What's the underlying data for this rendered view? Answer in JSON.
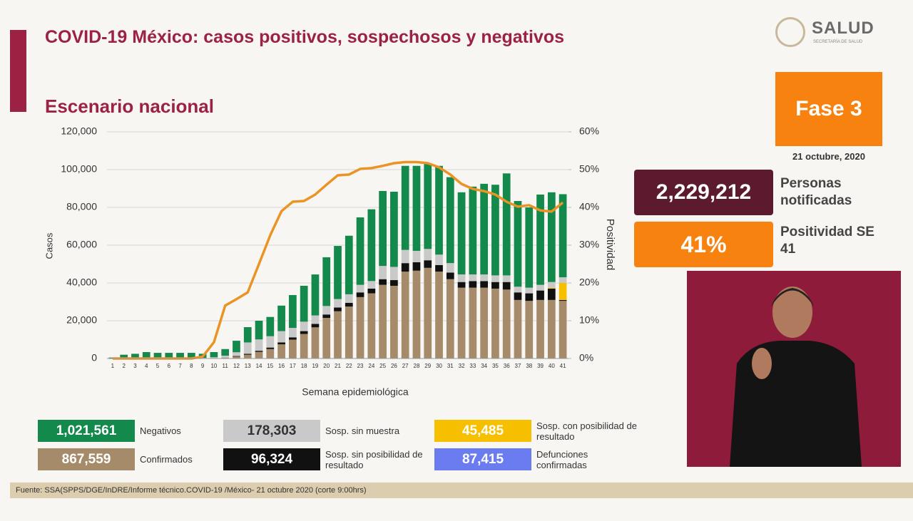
{
  "header": {
    "title": "COVID-19 México: casos positivos, sospechosos y negativos",
    "subtitle": "Escenario nacional",
    "logo": "SALUD",
    "logo_sub": "SECRETARÍA DE SALUD"
  },
  "side": {
    "phase": "Fase 3",
    "date": "21 octubre, 2020",
    "notified": "2,229,212",
    "notified_label": "Personas notificadas",
    "positivity": "41%",
    "positivity_label": "Positividad SE 41"
  },
  "chart_data": {
    "type": "bar",
    "stacked": true,
    "xlabel": "Semana epidemiológica",
    "ylabel": "Casos",
    "y2label": "Positividad",
    "categories": [
      "1",
      "2",
      "3",
      "4",
      "5",
      "6",
      "7",
      "8",
      "9",
      "10",
      "11",
      "12",
      "13",
      "14",
      "15",
      "16",
      "17",
      "18",
      "19",
      "20",
      "21",
      "22",
      "23",
      "24",
      "25",
      "26",
      "27",
      "28",
      "29",
      "30",
      "31",
      "32",
      "33",
      "34",
      "35",
      "36",
      "37",
      "38",
      "39",
      "40",
      "41"
    ],
    "ylim": [
      0,
      120000
    ],
    "yticks": [
      0,
      {
        "value": 20000,
        "label": "20,000"
      },
      {
        "value": 40000,
        "label": "40,000"
      },
      {
        "value": 60000,
        "label": "60,000"
      },
      {
        "value": 80000,
        "label": "80,000"
      },
      {
        "value": 100000,
        "label": "100,000"
      },
      {
        "value": 120000,
        "label": "120,000"
      }
    ],
    "y2lim": [
      0,
      60
    ],
    "y2ticks": [
      {
        "value": 0,
        "label": "0%"
      },
      {
        "value": 10,
        "label": "10%"
      },
      {
        "value": 20,
        "label": "20%"
      },
      {
        "value": 30,
        "label": "30%"
      },
      {
        "value": 40,
        "label": "40%"
      },
      {
        "value": 50,
        "label": "50%"
      },
      {
        "value": 60,
        "label": "60%"
      }
    ],
    "grid": true,
    "series": [
      {
        "name": "Confirmados",
        "total": "867,559",
        "color": "#a58b69",
        "values": [
          0,
          0,
          0,
          0,
          0,
          0,
          0,
          0,
          10,
          150,
          500,
          1000,
          2000,
          3500,
          5000,
          7500,
          10000,
          13000,
          16500,
          21500,
          25000,
          27500,
          32500,
          34500,
          39000,
          38500,
          46000,
          46500,
          48000,
          46000,
          42000,
          37500,
          37500,
          37500,
          37000,
          36500,
          31000,
          30500,
          31000,
          31000,
          30500
        ]
      },
      {
        "name": "Sosp. sin posibilidad de resultado",
        "total": "96,324",
        "color": "#111111",
        "values": [
          0,
          0,
          0,
          0,
          0,
          0,
          0,
          0,
          0,
          0,
          0,
          300,
          500,
          600,
          800,
          1000,
          1200,
          1500,
          1800,
          1800,
          2000,
          2000,
          2500,
          2500,
          3000,
          3000,
          4500,
          4500,
          4000,
          3500,
          3500,
          3000,
          3500,
          3500,
          3500,
          4000,
          4000,
          4000,
          5000,
          6000,
          500
        ]
      },
      {
        "name": "Sosp. con posibilidad de resultado",
        "total": "45,485",
        "color": "#f6c000",
        "values": [
          0,
          0,
          0,
          0,
          0,
          0,
          0,
          0,
          0,
          0,
          0,
          0,
          0,
          0,
          0,
          0,
          0,
          0,
          0,
          0,
          0,
          0,
          0,
          0,
          0,
          0,
          0,
          0,
          0,
          0,
          0,
          0,
          0,
          0,
          0,
          0,
          0,
          0,
          0,
          500,
          9000
        ]
      },
      {
        "name": "Sosp. sin muestra",
        "total": "178,303",
        "color": "#c9c9c9",
        "values": [
          0,
          100,
          200,
          300,
          300,
          300,
          300,
          300,
          300,
          500,
          1000,
          2000,
          6000,
          6000,
          6000,
          6000,
          5000,
          5000,
          4500,
          4500,
          4500,
          4500,
          4000,
          4000,
          7000,
          7000,
          7000,
          6000,
          6000,
          5500,
          5000,
          4000,
          3500,
          3500,
          3500,
          3500,
          3000,
          3000,
          3000,
          3000,
          3000
        ]
      },
      {
        "name": "Negativos",
        "total": "1,021,561",
        "color": "#13894b",
        "values": [
          500,
          1900,
          2300,
          3100,
          2700,
          2700,
          2700,
          2700,
          2190,
          2750,
          3500,
          6100,
          8100,
          9900,
          10200,
          13500,
          17400,
          19000,
          21700,
          25800,
          28100,
          31000,
          35700,
          38000,
          39700,
          39800,
          44500,
          45000,
          45000,
          47000,
          45500,
          43500,
          46500,
          48000,
          48000,
          54000,
          45400,
          42500,
          47800,
          47500,
          44000
        ]
      },
      {
        "type": "line",
        "axis": "y2",
        "color": "#ea9425",
        "values": [
          0,
          0,
          0,
          0,
          0,
          0,
          0,
          0,
          0.5,
          4.3,
          14,
          15.7,
          17.5,
          25,
          32.6,
          39,
          41.5,
          41.7,
          43.4,
          46,
          48.5,
          48.7,
          50.2,
          50.4,
          51,
          51.7,
          52,
          52,
          51.7,
          50.6,
          48.7,
          46.2,
          44.9,
          44.3,
          43.4,
          41.5,
          40.2,
          40.6,
          39.2,
          38.9,
          41.3
        ]
      }
    ],
    "extra_legend": {
      "name": "Defunciones confirmadas",
      "total": "87,415",
      "color": "#6b7cf0"
    }
  },
  "footer": "Fuente: SSA(SPPS/DGE/InDRE/Informe técnico.COVID-19 /México- 21 octubre 2020 (corte 9:00hrs)"
}
